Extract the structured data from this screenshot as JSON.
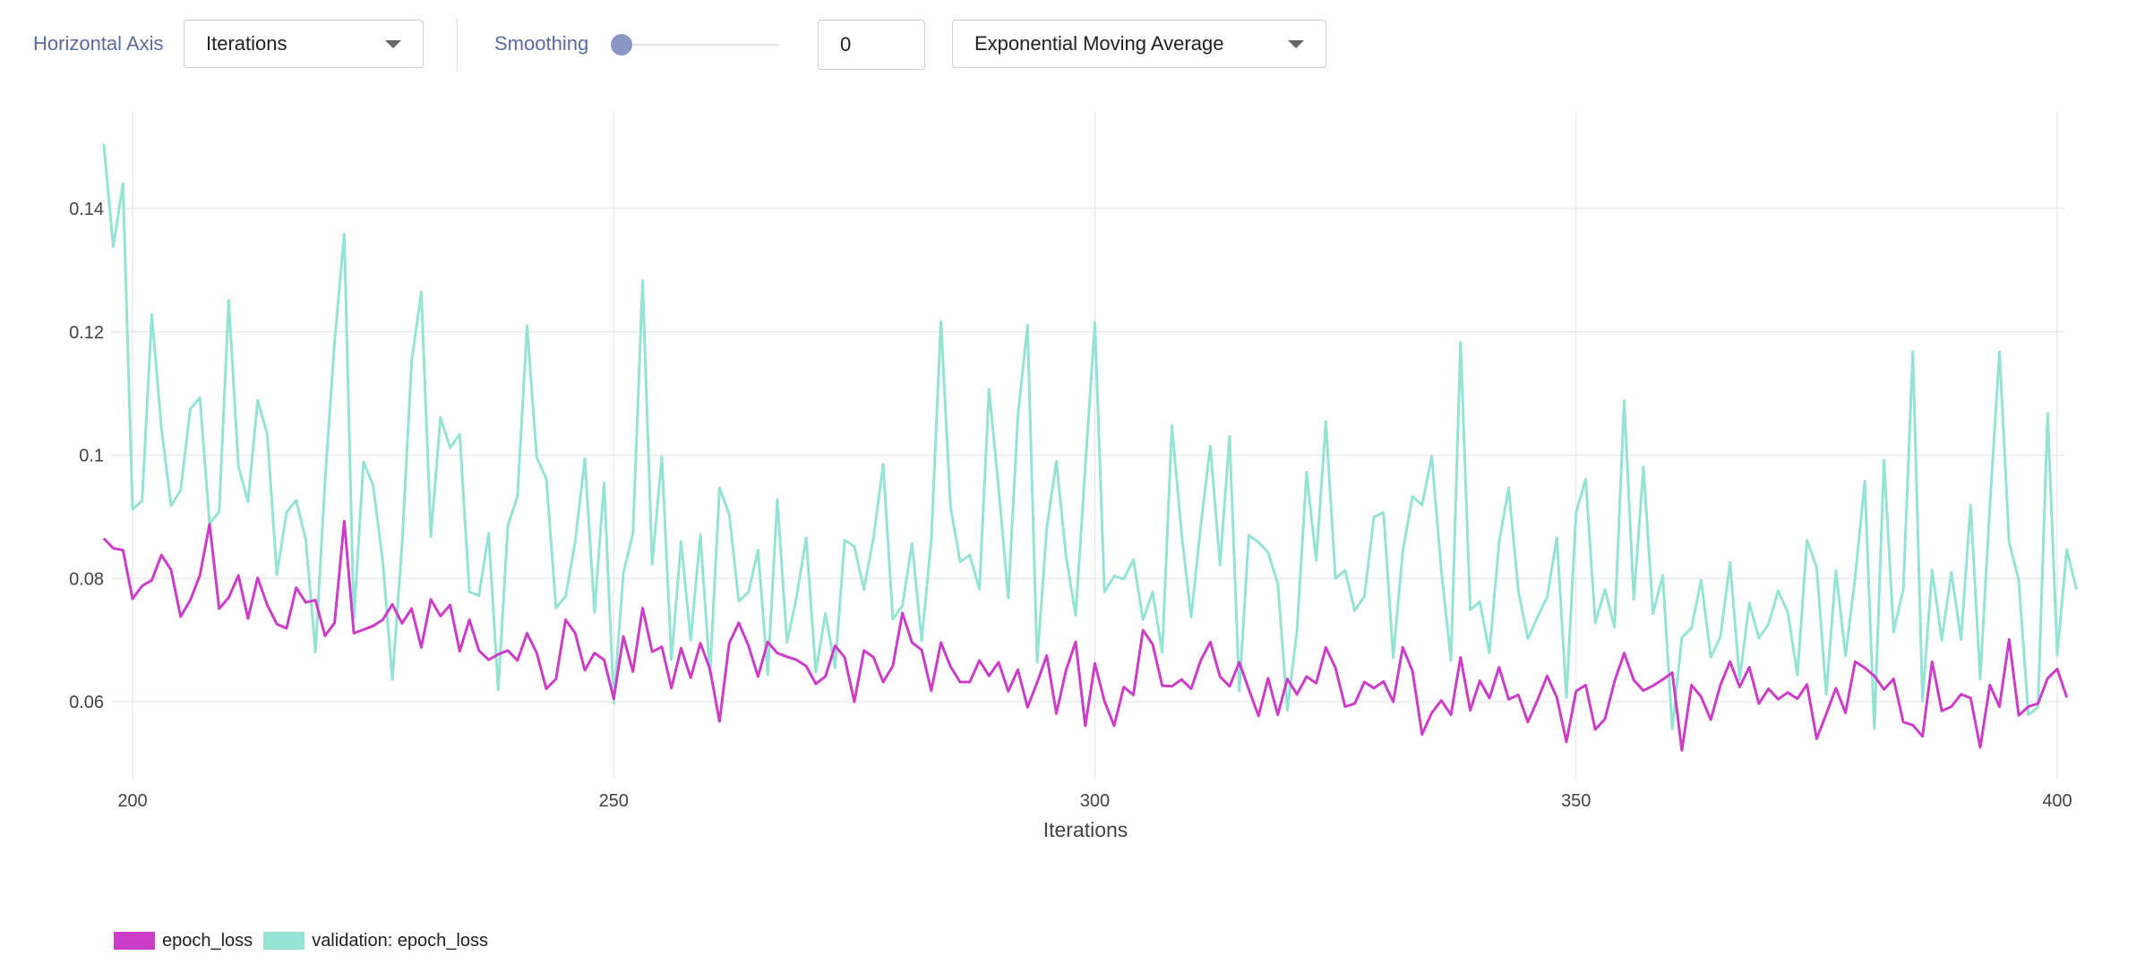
{
  "toolbar": {
    "horizontal_axis_label": "Horizontal Axis",
    "horizontal_axis_value": "Iterations",
    "smoothing_label": "Smoothing",
    "smoothing_value": "0",
    "smoothing_fraction": 0,
    "smoothing_method_value": "Exponential Moving Average"
  },
  "colors": {
    "train": "#cc3dc7",
    "validation": "#94e3d5",
    "accent": "#5c6b9e"
  },
  "chart_data": {
    "type": "line",
    "xlabel": "Iterations",
    "ylabel": "",
    "xlim": [
      197,
      401
    ],
    "ylim": [
      0.0475,
      0.155
    ],
    "x_ticks": [
      200,
      250,
      300,
      350,
      400
    ],
    "y_ticks": [
      0.06,
      0.08,
      0.1,
      0.12,
      0.14
    ],
    "y_tick_labels": [
      "0.06",
      "0.08",
      "0.1",
      "0.12",
      "0.14"
    ],
    "grid": true,
    "legend_position": "bottom-left",
    "series": [
      {
        "name": "epoch_loss",
        "x_start": 197,
        "y": [
          0.0865,
          0.0849,
          0.0846,
          0.0767,
          0.0788,
          0.0797,
          0.0838,
          0.0814,
          0.0738,
          0.0765,
          0.0805,
          0.0888,
          0.0751,
          0.0769,
          0.0805,
          0.0735,
          0.0801,
          0.0757,
          0.0726,
          0.0719,
          0.0785,
          0.0761,
          0.0765,
          0.0707,
          0.0728,
          0.0893,
          0.0711,
          0.0717,
          0.0723,
          0.0733,
          0.0758,
          0.0727,
          0.0751,
          0.0688,
          0.0766,
          0.0739,
          0.0757,
          0.0682,
          0.0733,
          0.0683,
          0.0668,
          0.0677,
          0.0683,
          0.0667,
          0.0711,
          0.0679,
          0.0621,
          0.0637,
          0.0733,
          0.0711,
          0.0651,
          0.0679,
          0.0668,
          0.0605,
          0.0706,
          0.0649,
          0.0752,
          0.0681,
          0.0689,
          0.0622,
          0.0687,
          0.0639,
          0.0695,
          0.0653,
          0.0568,
          0.0695,
          0.0728,
          0.0691,
          0.0641,
          0.0697,
          0.0679,
          0.0673,
          0.0668,
          0.0658,
          0.0629,
          0.0641,
          0.0691,
          0.0672,
          0.06,
          0.0683,
          0.0672,
          0.0632,
          0.0658,
          0.0744,
          0.0696,
          0.0684,
          0.0618,
          0.0696,
          0.0657,
          0.0632,
          0.0632,
          0.0667,
          0.0642,
          0.0664,
          0.0617,
          0.0652,
          0.0591,
          0.0631,
          0.0675,
          0.0581,
          0.0651,
          0.0697,
          0.0561,
          0.0662,
          0.0601,
          0.0561,
          0.0624,
          0.0611,
          0.0716,
          0.0693,
          0.0626,
          0.0625,
          0.0636,
          0.0621,
          0.0667,
          0.0697,
          0.0641,
          0.0625,
          0.0664,
          0.062,
          0.0577,
          0.0638,
          0.0579,
          0.0637,
          0.0612,
          0.0641,
          0.063,
          0.0688,
          0.0655,
          0.0592,
          0.0597,
          0.0632,
          0.0622,
          0.0633,
          0.06,
          0.0688,
          0.065,
          0.0547,
          0.0582,
          0.0602,
          0.0579,
          0.0672,
          0.0586,
          0.0634,
          0.0606,
          0.0656,
          0.0604,
          0.0611,
          0.0567,
          0.0603,
          0.0642,
          0.0607,
          0.0535,
          0.0617,
          0.0627,
          0.0555,
          0.0572,
          0.0633,
          0.0679,
          0.0635,
          0.0618,
          0.0626,
          0.0636,
          0.0647,
          0.0521,
          0.0627,
          0.0608,
          0.0571,
          0.0627,
          0.0665,
          0.0624,
          0.0656,
          0.0597,
          0.0621,
          0.0604,
          0.0615,
          0.0605,
          0.0628,
          0.054,
          0.058,
          0.0622,
          0.0582,
          0.0665,
          0.0655,
          0.0642,
          0.062,
          0.0637,
          0.0567,
          0.0562,
          0.0544,
          0.0665,
          0.0585,
          0.0592,
          0.0612,
          0.0606,
          0.0526,
          0.0627,
          0.0592,
          0.0701,
          0.0578,
          0.0592,
          0.0597,
          0.0638,
          0.0653,
          0.0607
        ]
      },
      {
        "name": "validation: epoch_loss",
        "x_start": 197,
        "y": [
          0.1505,
          0.1338,
          0.1441,
          0.0912,
          0.0926,
          0.1228,
          0.1045,
          0.0918,
          0.0943,
          0.1075,
          0.1093,
          0.0889,
          0.0908,
          0.1251,
          0.0982,
          0.0925,
          0.1089,
          0.1034,
          0.0806,
          0.0907,
          0.0927,
          0.0863,
          0.0681,
          0.0958,
          0.1184,
          0.1359,
          0.0734,
          0.0989,
          0.0951,
          0.0827,
          0.0636,
          0.0854,
          0.1152,
          0.1265,
          0.0868,
          0.1061,
          0.1012,
          0.1034,
          0.0778,
          0.0772,
          0.0873,
          0.0619,
          0.0886,
          0.0933,
          0.121,
          0.0996,
          0.0962,
          0.0752,
          0.0771,
          0.086,
          0.0994,
          0.0745,
          0.0955,
          0.0598,
          0.0808,
          0.0873,
          0.1283,
          0.0823,
          0.0997,
          0.0668,
          0.086,
          0.07,
          0.0871,
          0.0644,
          0.0947,
          0.0904,
          0.0763,
          0.0778,
          0.0846,
          0.0644,
          0.0928,
          0.0696,
          0.077,
          0.0866,
          0.0648,
          0.0743,
          0.0655,
          0.0862,
          0.0852,
          0.0782,
          0.0867,
          0.0985,
          0.0734,
          0.0756,
          0.0857,
          0.0699,
          0.0862,
          0.1217,
          0.0916,
          0.0827,
          0.0838,
          0.0782,
          0.1107,
          0.0947,
          0.0768,
          0.1063,
          0.1211,
          0.0664,
          0.0882,
          0.099,
          0.0836,
          0.074,
          0.0981,
          0.1215,
          0.0778,
          0.0804,
          0.0799,
          0.0831,
          0.0733,
          0.0778,
          0.068,
          0.1048,
          0.0874,
          0.0737,
          0.0885,
          0.1015,
          0.0822,
          0.103,
          0.0617,
          0.087,
          0.0859,
          0.0842,
          0.0792,
          0.0586,
          0.0715,
          0.0972,
          0.0829,
          0.1054,
          0.08,
          0.0813,
          0.0748,
          0.0771,
          0.09,
          0.0907,
          0.0672,
          0.0845,
          0.0933,
          0.0919,
          0.0998,
          0.0813,
          0.0667,
          0.1183,
          0.0749,
          0.0762,
          0.0679,
          0.0859,
          0.0947,
          0.078,
          0.0702,
          0.0738,
          0.077,
          0.0866,
          0.0607,
          0.0907,
          0.0961,
          0.0728,
          0.0782,
          0.0721,
          0.1088,
          0.0766,
          0.0981,
          0.0743,
          0.0805,
          0.0556,
          0.0704,
          0.072,
          0.0797,
          0.0672,
          0.0705,
          0.0826,
          0.0636,
          0.076,
          0.0703,
          0.0726,
          0.078,
          0.0745,
          0.0643,
          0.0862,
          0.0818,
          0.0612,
          0.0813,
          0.0674,
          0.0802,
          0.0958,
          0.0556,
          0.0992,
          0.0713,
          0.0782,
          0.1168,
          0.0601,
          0.0814,
          0.07,
          0.081,
          0.0701,
          0.0919,
          0.0637,
          0.0918,
          0.1168,
          0.0859,
          0.0797,
          0.0579,
          0.0591,
          0.1068,
          0.0676,
          0.0847,
          0.0782
        ]
      }
    ]
  }
}
